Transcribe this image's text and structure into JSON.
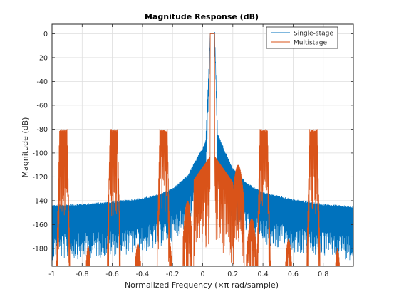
{
  "chart_data": {
    "type": "line",
    "title": "Magnitude Response (dB)",
    "xlabel": "Normalized Frequency (×π rad/sample)",
    "ylabel": "Magnitude (dB)",
    "xlim": [
      -1,
      1
    ],
    "ylim": [
      -195,
      8
    ],
    "xticks": [
      -1,
      -0.8,
      -0.6,
      -0.4,
      -0.2,
      0,
      0.2,
      0.4,
      0.6,
      0.8
    ],
    "xtick_labels": [
      "-1",
      "-0.8",
      "-0.6",
      "-0.4",
      "-0.2",
      "0",
      "0.2",
      "0.4",
      "0.6",
      "0.8"
    ],
    "yticks": [
      0,
      -20,
      -40,
      -60,
      -80,
      -100,
      -120,
      -140,
      -160,
      -180
    ],
    "ytick_labels": [
      "0",
      "-20",
      "-40",
      "-60",
      "-80",
      "-100",
      "-120",
      "-140",
      "-160",
      "-180"
    ],
    "grid": true,
    "legend_position": "top-right",
    "series": [
      {
        "name": "Single-stage",
        "color": "#0072bd",
        "passband": [
          0.05,
          0.08
        ],
        "x": [
          -1,
          -0.8,
          -0.6,
          -0.4,
          -0.3,
          -0.2,
          -0.1,
          -0.05,
          0,
          0.02,
          0.05,
          0.065,
          0.08,
          0.1,
          0.15,
          0.2,
          0.3,
          0.4,
          0.6,
          0.8,
          1
        ],
        "upper": [
          -145,
          -144,
          -142,
          -139,
          -136,
          -131,
          -120,
          -108,
          -97,
          -90,
          0,
          0,
          0,
          -85,
          -100,
          -114,
          -127,
          -134,
          -140,
          -144,
          -146
        ],
        "lower": [
          -168,
          -167,
          -165,
          -162,
          -158,
          -152,
          -140,
          -128,
          -117,
          -110,
          0,
          0,
          0,
          -105,
          -120,
          -135,
          -150,
          -156,
          -162,
          -166,
          -168
        ]
      },
      {
        "name": "Multistage",
        "color": "#d95319",
        "passband": [
          0.05,
          0.08
        ],
        "image_centers": [
          -0.925,
          -0.59,
          -0.26,
          0.405,
          0.735
        ],
        "image_width": 0.05,
        "image_level": -80,
        "lobe_centers": [
          -0.905,
          -0.76,
          -0.575,
          -0.43,
          -0.24,
          -0.1,
          0.235,
          0.325,
          0.425,
          0.57,
          0.745,
          0.895
        ],
        "lobe_peaks": [
          -180,
          -178,
          -172,
          -176,
          -160,
          -140,
          -110,
          -155,
          -160,
          -172,
          -172,
          -180
        ],
        "lobe_widths": [
          0.04,
          0.04,
          0.05,
          0.05,
          0.07,
          0.06,
          0.08,
          0.07,
          0.05,
          0.05,
          0.04,
          0.04
        ],
        "near_band": [
          -0.06,
          0.2
        ],
        "near_level": -100
      }
    ]
  }
}
